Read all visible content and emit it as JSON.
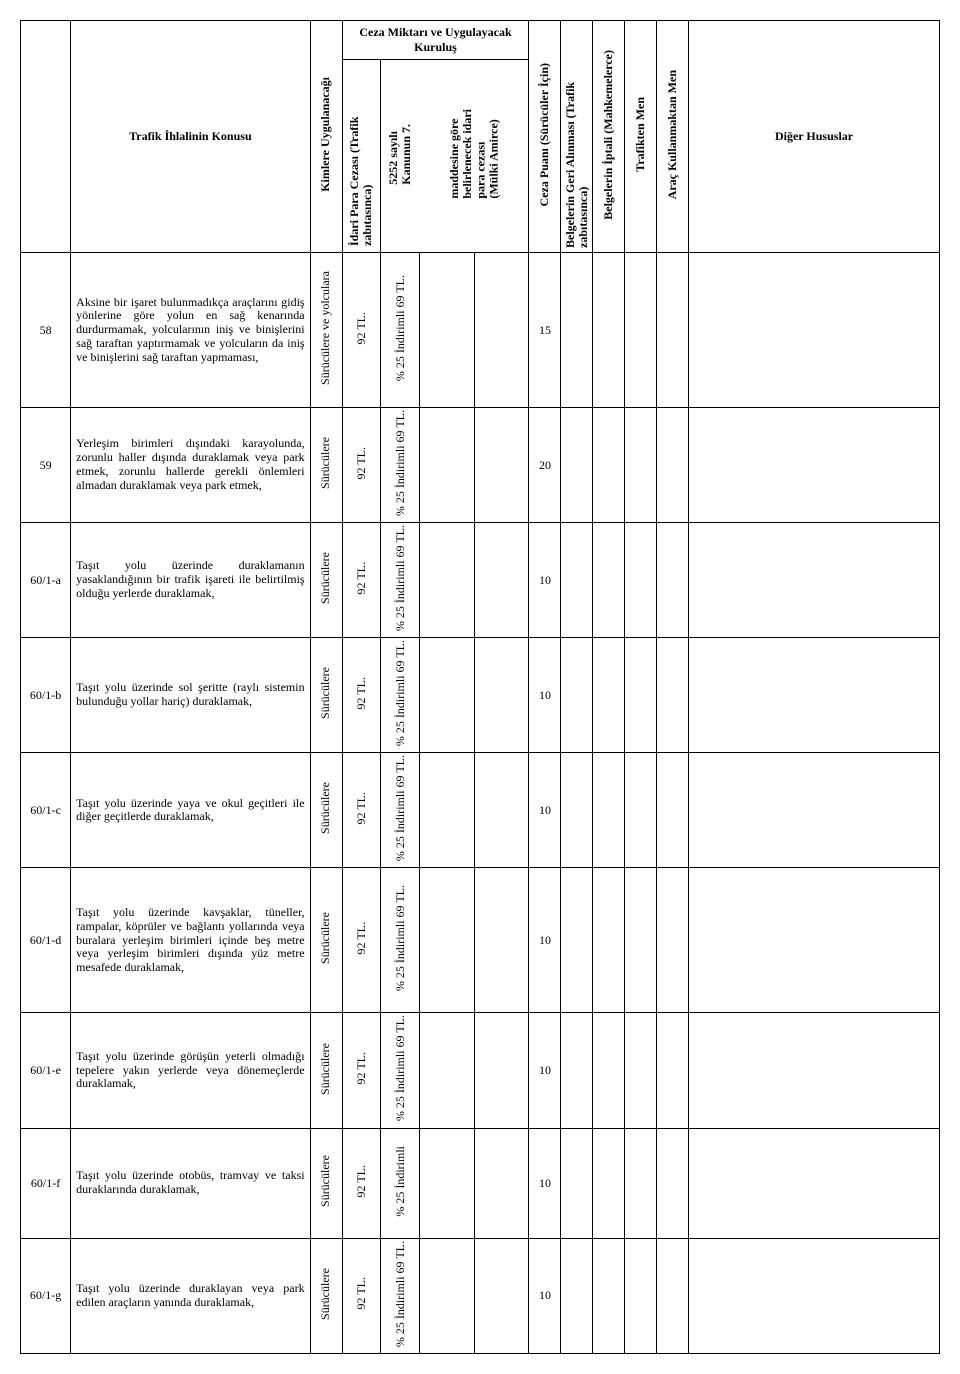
{
  "headers": {
    "col_konu": "Trafik İhlalinin Konusu",
    "col_kimlere": "Kimlere Uygulanacağı",
    "group_ceza": "Ceza Miktarı ve Uygulayacak Kuruluş",
    "col_idari": "İdari Para Cezası (Trafik zabıtasınca)",
    "col_5252": "5252 sayılı Kanunun 7. maddesine göre belirlenecek idari para cezası (Mülki Amirce)",
    "col_puan": "Ceza Puanı (Sürücüler İçin)",
    "col_geri": "Belgelerin Geri Alınması (Trafik zabıtasınca)",
    "col_iptal": "Belgelerin İptali (Mahkemelerce)",
    "col_trafmen": "Trafikten Men",
    "col_aracmen": "Araç Kullanmaktan Men",
    "col_diger": "Diğer Hususlar"
  },
  "common": {
    "suruculere": "Sürücülere",
    "surucu_yolcu": "Sürücülere ve yolculara",
    "ceza_92": "92 TL.",
    "ind_25_69": "% 25 İndirimli 69 TL.",
    "ind_25": "% 25 İndirimli"
  },
  "rows": [
    {
      "code": "58",
      "desc": "Aksine bir işaret bulunmadıkça araçlarını gidiş yönlerine göre yolun en sağ kenarında durdurmamak, yolcularının iniş ve binişlerini sağ taraftan yaptırmamak ve yolcuların da iniş ve binişlerini sağ taraftan yapmaması,",
      "kimlere_key": "surucu_yolcu",
      "ceza_key": "ceza_92",
      "ind_key": "ind_25_69",
      "puan": "15",
      "h": "row-h-xl"
    },
    {
      "code": "59",
      "desc": "Yerleşim birimleri dışındaki karayolunda, zorunlu haller dışında duraklamak veya park etmek, zorunlu hallerde gerekli önlemleri almadan duraklamak veya park etmek,",
      "kimlere_key": "suruculere",
      "ceza_key": "ceza_92",
      "ind_key": "ind_25_69",
      "puan": "20",
      "h": "row-h"
    },
    {
      "code": "60/1-a",
      "desc": "Taşıt yolu üzerinde duraklamanın yasaklandığının bir trafik işareti ile belirtilmiş olduğu yerlerde duraklamak,",
      "kimlere_key": "suruculere",
      "ceza_key": "ceza_92",
      "ind_key": "ind_25_69",
      "puan": "10",
      "h": "row-h"
    },
    {
      "code": "60/1-b",
      "desc": "Taşıt yolu üzerinde sol şeritte (raylı sistemin bulunduğu yollar hariç) duraklamak,",
      "kimlere_key": "suruculere",
      "ceza_key": "ceza_92",
      "ind_key": "ind_25_69",
      "puan": "10",
      "h": "row-h"
    },
    {
      "code": "60/1-c",
      "desc": "Taşıt yolu üzerinde yaya ve okul geçitleri ile diğer geçitlerde duraklamak,",
      "kimlere_key": "suruculere",
      "ceza_key": "ceza_92",
      "ind_key": "ind_25_69",
      "puan": "10",
      "h": "row-h"
    },
    {
      "code": "60/1-d",
      "desc": "Taşıt yolu üzerinde kavşaklar, tüneller, rampalar, köprüler ve bağlantı yollarında veya buralara yerleşim birimleri içinde beş metre veya yerleşim birimleri dışında yüz metre mesafede duraklamak,",
      "kimlere_key": "suruculere",
      "ceza_key": "ceza_92",
      "ind_key": "ind_25_69",
      "puan": "10",
      "h": "row-h-lg"
    },
    {
      "code": "60/1-e",
      "desc": "Taşıt yolu üzerinde görüşün yeterli olmadığı tepelere yakın yerlerde veya dönemeçlerde duraklamak,",
      "kimlere_key": "suruculere",
      "ceza_key": "ceza_92",
      "ind_key": "ind_25_69",
      "puan": "10",
      "h": "row-h"
    },
    {
      "code": "60/1-f",
      "desc": "Taşıt yolu üzerinde otobüs, tramvay ve taksi duraklarında duraklamak,",
      "kimlere_key": "suruculere",
      "ceza_key": "ceza_92",
      "ind_key": "ind_25",
      "puan": "10",
      "h": "row-h"
    },
    {
      "code": "60/1-g",
      "desc": "Taşıt yolu üzerinde duraklayan veya park edilen araçların yanında duraklamak,",
      "kimlere_key": "suruculere",
      "ceza_key": "ceza_92",
      "ind_key": "ind_25_69",
      "puan": "10",
      "h": "row-h"
    }
  ]
}
